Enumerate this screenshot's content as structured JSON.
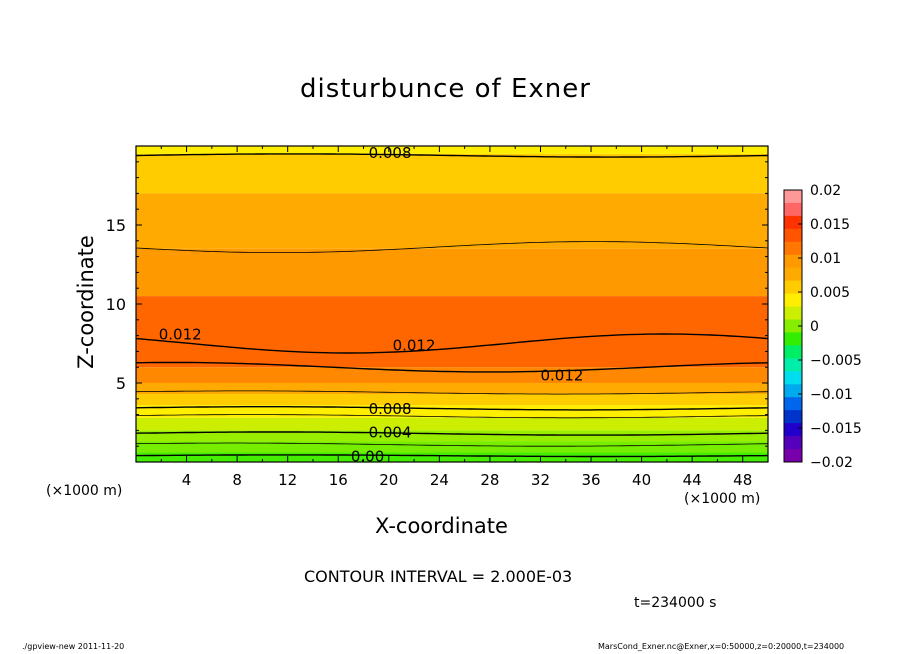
{
  "chart_data": {
    "type": "contour",
    "title": "disturbunce of Exner",
    "xlabel": "X-coordinate",
    "ylabel": "Z-coordinate",
    "x_unit_left": "(×1000 m)",
    "x_unit_right": "(×1000 m)",
    "xlim": [
      0,
      50
    ],
    "ylim": [
      0,
      20
    ],
    "xticks": [
      "4",
      "8",
      "12",
      "16",
      "20",
      "24",
      "28",
      "32",
      "36",
      "40",
      "44",
      "48"
    ],
    "yticks": [
      "5",
      "10",
      "15"
    ],
    "contour_interval_text": "CONTOUR INTERVAL = 2.000E-03",
    "time_text": "t=234000 s",
    "contour_labels": [
      "0.008",
      "0.012",
      "0.012",
      "0.012",
      "0.008",
      "0.004",
      "0.00"
    ],
    "colorbar": {
      "labels": [
        "0.02",
        "0.015",
        "0.01",
        "0.005",
        "0",
        "−0.005",
        "−0.01",
        "−0.015",
        "−0.02"
      ],
      "colors": [
        "#ff9999",
        "#ff6666",
        "#ff3300",
        "#ff5500",
        "#ff7700",
        "#ff9900",
        "#ffaa00",
        "#ffcc00",
        "#ffee00",
        "#ccee00",
        "#88ee00",
        "#33ee00",
        "#00ee66",
        "#00eeaa",
        "#00ddee",
        "#00aaee",
        "#0066ee",
        "#0033cc",
        "#2200cc",
        "#5500bb",
        "#7700aa"
      ]
    },
    "bands": [
      {
        "z": [
          0,
          0.6
        ],
        "color": "#44ee00"
      },
      {
        "z": [
          0.6,
          1.3
        ],
        "color": "#77ee00"
      },
      {
        "z": [
          1.3,
          2.0
        ],
        "color": "#99ee00"
      },
      {
        "z": [
          2.0,
          2.8
        ],
        "color": "#ccee00"
      },
      {
        "z": [
          2.8,
          3.6
        ],
        "color": "#ffee00"
      },
      {
        "z": [
          3.6,
          4.3
        ],
        "color": "#ffcc00"
      },
      {
        "z": [
          4.3,
          5.0
        ],
        "color": "#ffaa00"
      },
      {
        "z": [
          5.0,
          6.0
        ],
        "color": "#ff8800"
      },
      {
        "z": [
          6.0,
          10.5
        ],
        "color": "#ff6600"
      },
      {
        "z": [
          10.5,
          13.5
        ],
        "color": "#ff9900"
      },
      {
        "z": [
          13.5,
          17.0
        ],
        "color": "#ffaa00"
      },
      {
        "z": [
          17.0,
          19.5
        ],
        "color": "#ffcc00"
      },
      {
        "z": [
          19.5,
          20.0
        ],
        "color": "#ffee00"
      }
    ]
  },
  "footer": {
    "left": "./gpview-new   2011-11-20",
    "right": "MarsCond_Exner.nc@Exner,x=0:50000,z=0:20000,t=234000"
  }
}
